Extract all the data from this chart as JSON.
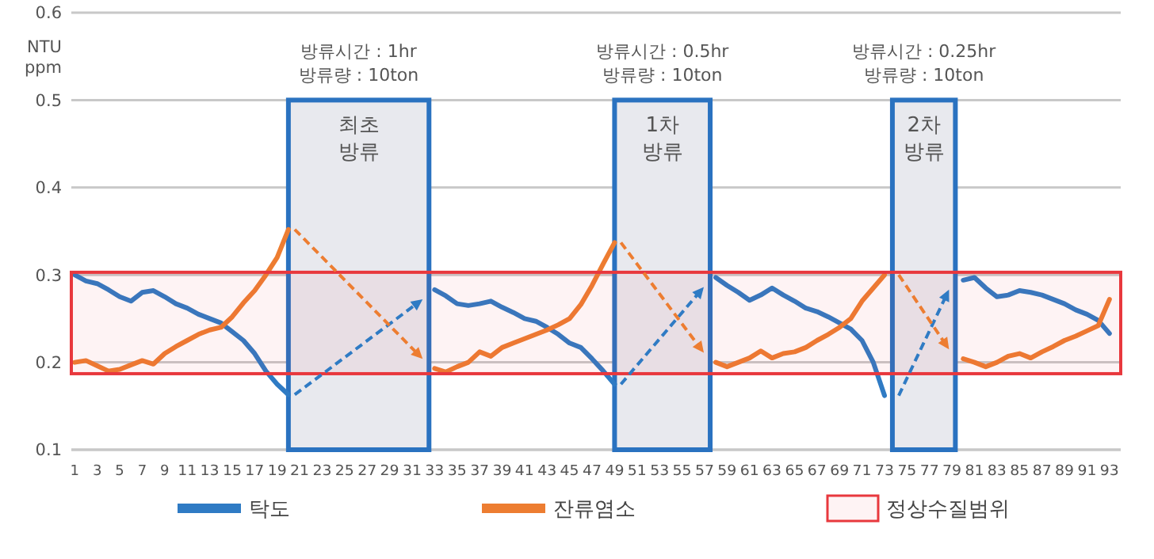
{
  "chart_data": {
    "type": "line",
    "ylabel": "NTU\nppm",
    "x": [
      1,
      2,
      3,
      4,
      5,
      6,
      7,
      8,
      9,
      10,
      11,
      12,
      13,
      14,
      15,
      16,
      17,
      18,
      19,
      20,
      21,
      22,
      23,
      24,
      25,
      26,
      27,
      28,
      29,
      30,
      31,
      32,
      33,
      34,
      35,
      36,
      37,
      38,
      39,
      40,
      41,
      42,
      43,
      44,
      45,
      46,
      47,
      48,
      49,
      50,
      51,
      52,
      53,
      54,
      55,
      56,
      57,
      58,
      59,
      60,
      61,
      62,
      63,
      64,
      65,
      66,
      67,
      68,
      69,
      70,
      71,
      72,
      73,
      74,
      75,
      76,
      77,
      78,
      79,
      80,
      81,
      82,
      83,
      84,
      85,
      86,
      87,
      88,
      89,
      90,
      91,
      92,
      93
    ],
    "series": [
      {
        "name": "탁도",
        "color": "#2f7bc4",
        "values": [
          0.3,
          0.293,
          0.29,
          0.283,
          0.275,
          0.27,
          0.28,
          0.282,
          0.275,
          0.267,
          0.262,
          0.255,
          0.25,
          0.245,
          0.235,
          0.225,
          0.21,
          0.19,
          0.175,
          0.163,
          null,
          null,
          null,
          null,
          null,
          null,
          null,
          null,
          null,
          null,
          null,
          null,
          0.283,
          0.276,
          0.267,
          0.265,
          0.267,
          0.27,
          0.263,
          0.257,
          0.25,
          0.247,
          0.24,
          0.232,
          0.222,
          0.217,
          0.204,
          0.19,
          0.175,
          null,
          null,
          null,
          null,
          null,
          null,
          null,
          null,
          0.297,
          0.288,
          0.28,
          0.271,
          0.277,
          0.285,
          0.277,
          0.27,
          0.262,
          0.258,
          0.252,
          0.245,
          0.238,
          0.225,
          0.2,
          0.162,
          null,
          null,
          null,
          null,
          null,
          null,
          0.294,
          0.297,
          0.285,
          0.275,
          0.277,
          0.282,
          0.28,
          0.277,
          0.272,
          0.267,
          0.26,
          0.255,
          0.248,
          0.233
        ]
      },
      {
        "name": "잔류염소",
        "color": "#ed7d31",
        "values": [
          0.2,
          0.202,
          0.196,
          0.19,
          0.192,
          0.197,
          0.202,
          0.198,
          0.21,
          0.218,
          0.225,
          0.232,
          0.237,
          0.24,
          0.252,
          0.268,
          0.282,
          0.3,
          0.32,
          0.352,
          null,
          null,
          null,
          null,
          null,
          null,
          null,
          null,
          null,
          null,
          null,
          null,
          0.193,
          0.189,
          0.195,
          0.2,
          0.212,
          0.207,
          0.217,
          0.222,
          0.227,
          0.232,
          0.237,
          0.243,
          0.25,
          0.266,
          0.288,
          0.313,
          0.337,
          null,
          null,
          null,
          null,
          null,
          null,
          null,
          null,
          0.2,
          0.195,
          0.2,
          0.205,
          0.213,
          0.205,
          0.21,
          0.212,
          0.217,
          0.225,
          0.232,
          0.24,
          0.25,
          0.27,
          0.285,
          0.3,
          null,
          null,
          null,
          null,
          null,
          null,
          0.204,
          0.2,
          0.195,
          0.2,
          0.207,
          0.21,
          0.205,
          0.212,
          0.218,
          0.225,
          0.23,
          0.236,
          0.242,
          0.272
        ]
      }
    ],
    "xlim": [
      0.7,
      94
    ],
    "xticks": [
      1,
      3,
      5,
      7,
      9,
      11,
      13,
      15,
      17,
      19,
      21,
      23,
      25,
      27,
      29,
      31,
      33,
      35,
      37,
      39,
      41,
      43,
      45,
      47,
      49,
      51,
      53,
      55,
      57,
      59,
      61,
      63,
      65,
      67,
      69,
      71,
      73,
      75,
      77,
      79,
      81,
      83,
      85,
      87,
      89,
      91,
      93
    ],
    "ylim": [
      0.1,
      0.6
    ],
    "yticks": [
      0.1,
      0.2,
      0.3,
      0.4,
      0.5,
      0.6
    ],
    "grid": "y",
    "legend": "bottom",
    "bands": [
      {
        "axis": "x",
        "from": 20,
        "to": 32.5,
        "label": "최초\n방류",
        "color": "#2a72c0"
      },
      {
        "axis": "x",
        "from": 49,
        "to": 57.5,
        "label": "1차\n방류",
        "color": "#2a72c0"
      },
      {
        "axis": "x",
        "from": 73.7,
        "to": 79.3,
        "label": "2차\n방류",
        "color": "#2a72c0"
      },
      {
        "axis": "y",
        "from": 0.187,
        "to": 0.303,
        "label": "정상수질범위",
        "color": "#e8383d"
      }
    ],
    "annotations": [
      "방류시간 : 1hr\n방류량 : 10ton",
      "방류시간 : 0.5hr\n방류량 : 10ton",
      "방류시간 : 0.25hr\n방류량 : 10ton"
    ]
  }
}
